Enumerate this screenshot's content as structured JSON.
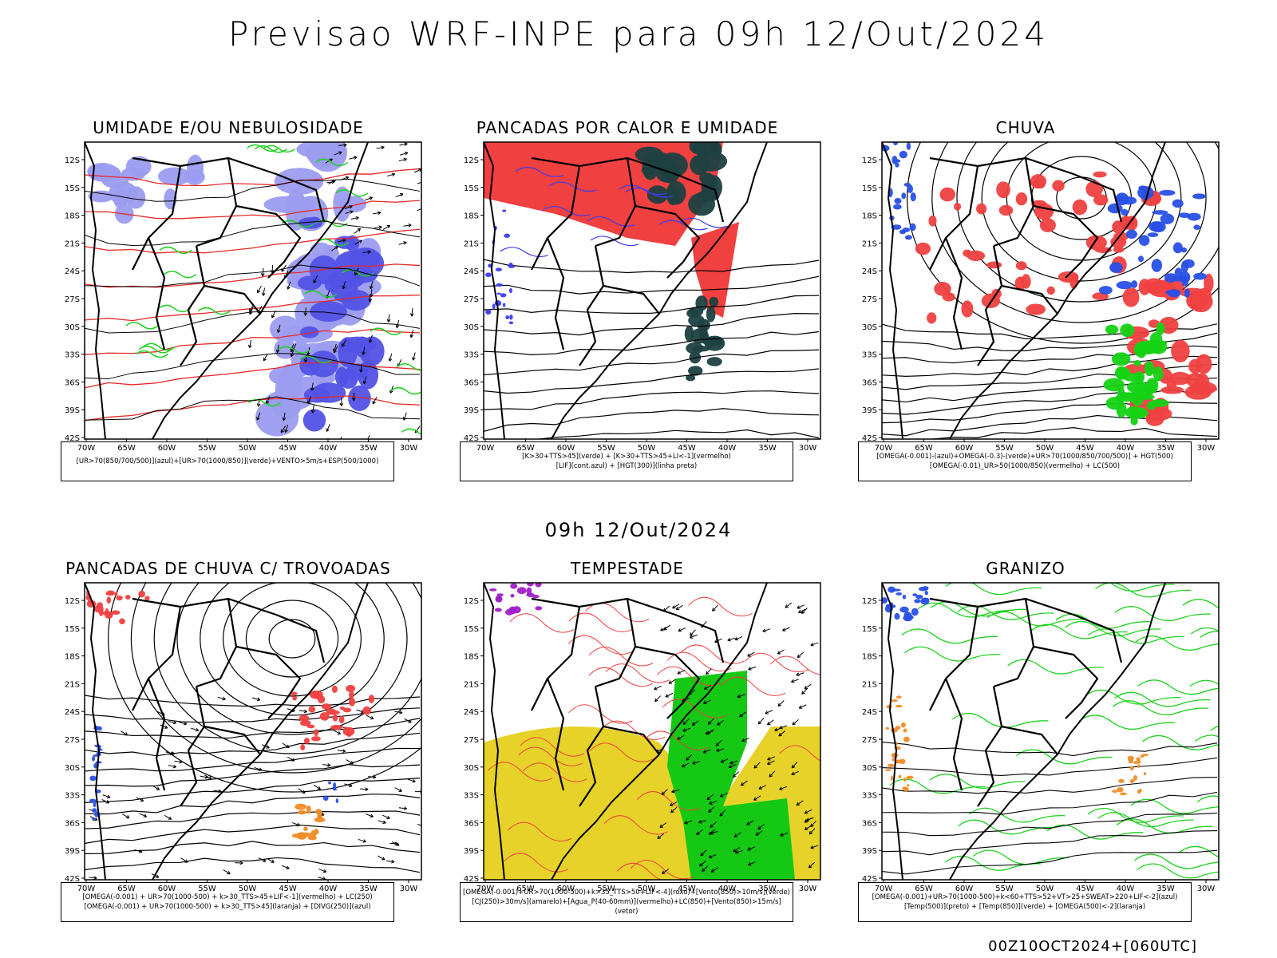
{
  "title": "Previsao WRF-INPE  para 09h 12/Out/2024",
  "subtitle": "09h 12/Out/2024",
  "footer": "00Z10OCT2024+[060UTC]",
  "axes": {
    "lat_labels": [
      "12S",
      "15S",
      "18S",
      "21S",
      "24S",
      "27S",
      "30S",
      "33S",
      "36S",
      "39S",
      "42S"
    ],
    "lon_labels": [
      "70W",
      "65W",
      "60W",
      "55W",
      "50W",
      "45W",
      "40W",
      "35W",
      "30W"
    ]
  },
  "panels": [
    {
      "id": "umidade",
      "title": "UMIDADE E/OU NEBULOSIDADE",
      "legend": [
        "[UR>70(850/700/500)](azul)+[UR>70(1000/850)](verde)+VENTO>5m/s+ESP(500/1000)"
      ],
      "colors": {
        "fill1": "#9c9cf0",
        "fill2": "#5252e6",
        "line1": "#1ed21e",
        "line2": "#e62828"
      }
    },
    {
      "id": "pancadas-calor",
      "title": "PANCADAS POR CALOR E UMIDADE",
      "legend": [
        "[K>30+TTS>45](verde)  +  [K>30+TTS>45+LI<-1](vermelho)",
        "[LIF](cont.azul)  +  [HGT(300)](linha preta)"
      ],
      "colors": {
        "fill1": "#f04040",
        "fill2": "#1e4040",
        "line1": "#3c3cf0",
        "line2": "#000000"
      }
    },
    {
      "id": "chuva",
      "title": "CHUVA",
      "legend": [
        "[OMEGA(-0.001)-(azul)+OMEGA(-0.3)-(verde)+UR>70(1000/850/700/500)]  +  HGT(500)",
        "[OMEGA(-0.01)_UR>50(1000/850)(vermelho)  +  LC(500)"
      ],
      "colors": {
        "fill1": "#f04040",
        "fill2": "#2850e6",
        "fill3": "#14d214",
        "line2": "#000000"
      }
    },
    {
      "id": "trovoadas",
      "title": "PANCADAS DE CHUVA C/ TROVOADAS",
      "legend": [
        "[OMEGA(-0.001)  +  UR>70(1000-500)  +  k>30_TTS>45+LIF<-1](vermelho)  +  LC(250)",
        "[OMEGA(-0.001)  +  UR>70(1000-500)  +  k>30_TTS>45](laranja)  +  [DIVG(250)](azul)"
      ],
      "colors": {
        "fill1": "#f04040",
        "fill2": "#f08c28",
        "fill3": "#2850e6",
        "line2": "#000000"
      }
    },
    {
      "id": "tempestade",
      "title": "TEMPESTADE",
      "legend": [
        "[OMEGA(-0.001)+UR>70(1000-500)+k>35_TTS>50+LIF<-4](roxo)+[Vento(850)>10m/s](verde)",
        "[CJ(250)>30m/s](amarelo)+[Agua_P(40-60mm)](vermelho)+LC(850)+[Vento(850)>15m/s](vetor)"
      ],
      "colors": {
        "fill1": "#e6d228",
        "fill2": "#14c814",
        "fill3": "#a020c8",
        "line1": "#f04040",
        "line2": "#000000"
      }
    },
    {
      "id": "granizo",
      "title": "GRANIZO",
      "legend": [
        "[OMEGA(-0.001)+UR>70(1000-500)+k<60+TTS>52+VT>25+SWEAT>220+LIF<-2](azul)",
        "[Temp(500)](preto)  +  [Temp(850)](verde)  +  [OMEGA(500)<-2](laranja)"
      ],
      "colors": {
        "fill1": "#2850e6",
        "fill2": "#f08c28",
        "line1": "#1ed21e",
        "line2": "#000000"
      }
    }
  ]
}
